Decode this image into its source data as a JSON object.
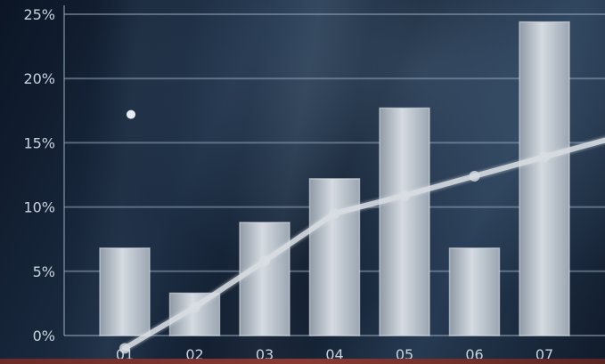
{
  "chart_data": {
    "type": "bar",
    "categories": [
      "01",
      "02",
      "03",
      "04",
      "05",
      "06",
      "07"
    ],
    "values": [
      6.8,
      3.3,
      8.8,
      12.2,
      17.7,
      6.8,
      24.4
    ],
    "line": {
      "x": [
        "01",
        "02",
        "03",
        "04",
        "05",
        "06",
        "07"
      ],
      "values": [
        -1.0,
        2.2,
        5.8,
        9.5,
        10.9,
        12.4,
        13.9
      ]
    },
    "marker": {
      "x": "01",
      "value": 17.2
    },
    "y_ticks": [
      "0%",
      "5%",
      "10%",
      "15%",
      "20%",
      "25%"
    ],
    "ylim": [
      0,
      25
    ],
    "title": "",
    "xlabel": "",
    "ylabel": "",
    "grid": true,
    "colors": {
      "bar": "#c7ced6",
      "line": "#d8dde2",
      "marker": "#e6ecf2",
      "grid": "#8fa2b6",
      "background": "#15233a"
    }
  }
}
